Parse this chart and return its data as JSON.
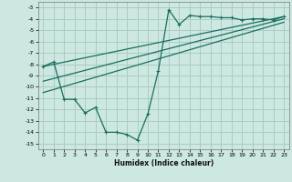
{
  "xlabel": "Humidex (Indice chaleur)",
  "background_color": "#cce8e0",
  "grid_color": "#aaccc4",
  "line_color": "#1a6e60",
  "xlim": [
    -0.5,
    23.5
  ],
  "ylim": [
    -15.5,
    -2.5
  ],
  "yticks": [
    -3,
    -4,
    -5,
    -6,
    -7,
    -8,
    -9,
    -10,
    -11,
    -12,
    -13,
    -14,
    -15
  ],
  "xticks": [
    0,
    1,
    2,
    3,
    4,
    5,
    6,
    7,
    8,
    9,
    10,
    11,
    12,
    13,
    14,
    15,
    16,
    17,
    18,
    19,
    20,
    21,
    22,
    23
  ],
  "series1_x": [
    0,
    1,
    2,
    3,
    4,
    5,
    6,
    7,
    8,
    9,
    10,
    11,
    12,
    13,
    14,
    15,
    16,
    17,
    18,
    19,
    20,
    21,
    22,
    23
  ],
  "series1_y": [
    -8.2,
    -7.8,
    -11.1,
    -11.1,
    -12.3,
    -11.8,
    -14.0,
    -14.0,
    -14.2,
    -14.7,
    -12.4,
    -8.6,
    -3.2,
    -4.5,
    -3.7,
    -3.8,
    -3.8,
    -3.9,
    -3.9,
    -4.1,
    -4.0,
    -4.0,
    -4.1,
    -3.8
  ],
  "series2_x": [
    0,
    23
  ],
  "series2_y": [
    -8.2,
    -3.8
  ],
  "series3_x": [
    0,
    23
  ],
  "series3_y": [
    -9.5,
    -4.0
  ],
  "series4_x": [
    0,
    23
  ],
  "series4_y": [
    -10.5,
    -4.3
  ]
}
